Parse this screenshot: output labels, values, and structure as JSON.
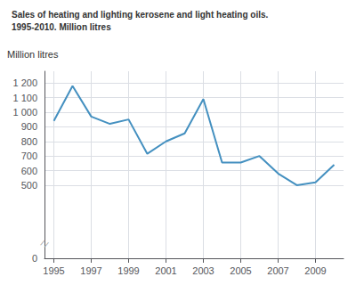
{
  "chart_data": {
    "type": "line",
    "title": "Sales of heating and lighting kerosene and light heating oils.",
    "subtitle": "1995-2010. Million litres",
    "ylabel": "Million litres",
    "annotation": "/ /",
    "x": [
      1995,
      1996,
      1997,
      1998,
      1999,
      2000,
      2001,
      2002,
      2003,
      2004,
      2005,
      2006,
      2007,
      2008,
      2009,
      2010
    ],
    "values": [
      940,
      1180,
      970,
      920,
      950,
      715,
      800,
      855,
      1090,
      655,
      655,
      700,
      580,
      500,
      520,
      640
    ],
    "color": "#4490c0",
    "xlim": [
      1994.5,
      2010.5
    ],
    "xticks": [
      1995,
      1997,
      1999,
      2001,
      2003,
      2005,
      2007,
      2009
    ],
    "ylim": [
      0,
      1280
    ],
    "yticks": [
      0,
      500,
      600,
      700,
      800,
      900,
      {
        "value": 1000,
        "label": "1 000"
      },
      {
        "value": 1100,
        "label": "1 100"
      },
      {
        "value": 1200,
        "label": "1 200"
      }
    ],
    "grid": true
  }
}
